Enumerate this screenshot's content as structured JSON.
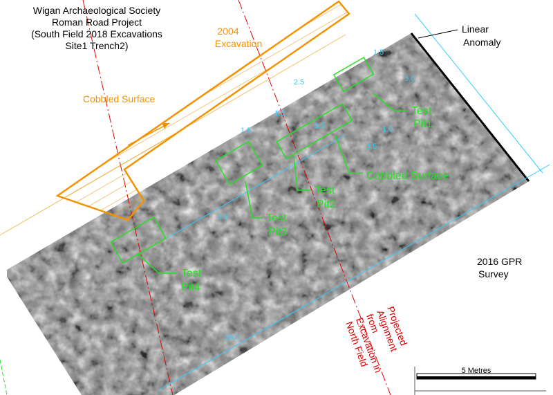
{
  "header": {
    "lines": [
      "Wigan Archaeological Society",
      "Roman Road Project",
      "(South Field 2018 Excavations",
      "Site1 Trench2)"
    ]
  },
  "labels": {
    "excavation_2004": [
      "2004",
      "Excavation"
    ],
    "cobbled_surface_orange": "Cobbled Surface",
    "linear_anomaly": [
      "Linear",
      "Anomaly"
    ],
    "cobbled_surface_green": "Cobbled Surface",
    "gpr_survey": [
      "2016 GPR",
      "Survey"
    ],
    "projected_alignment": [
      "Projected",
      "Alignment",
      "from",
      "Excavation in",
      "North Field"
    ]
  },
  "test_pits": [
    {
      "label": [
        "Test",
        "Pit1"
      ]
    },
    {
      "label": [
        "Test",
        "Pit2"
      ]
    },
    {
      "label": [
        "Test",
        "Pit3"
      ]
    },
    {
      "label": [
        "Test",
        "Pit4"
      ]
    }
  ],
  "dimensions": [
    "1.5",
    "3.0",
    "2.5",
    "1.5",
    "1.5",
    "1.5",
    "1.0",
    "3.5",
    "3.5",
    "28.0"
  ],
  "scale_bar": {
    "label": "5 Metres"
  }
}
